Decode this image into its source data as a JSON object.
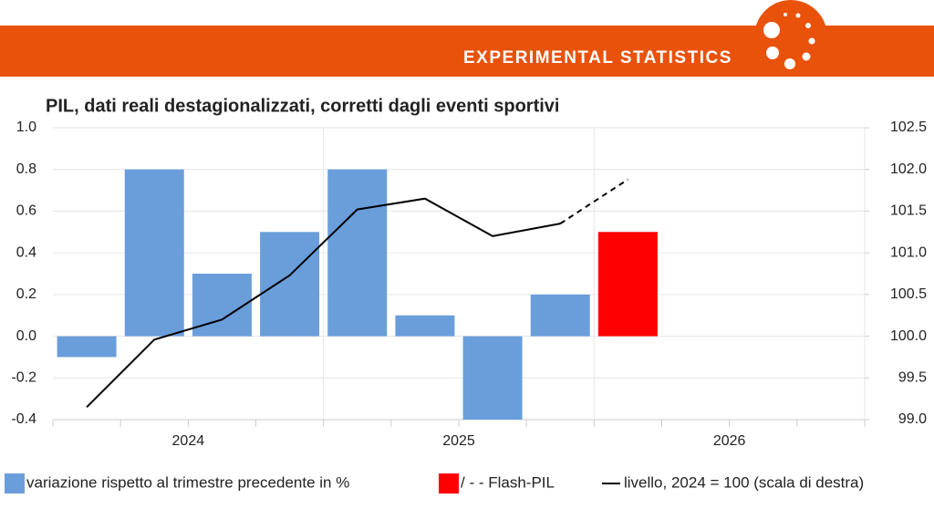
{
  "header": {
    "banner": "EXPERIMENTAL STATISTICS"
  },
  "chart_data": {
    "type": "bar",
    "title": "PIL, dati reali destagionalizzati, corretti dagli eventi sportivi",
    "categories": [
      null,
      null,
      null,
      null,
      null,
      null,
      null,
      null,
      null,
      null,
      null,
      null
    ],
    "year_labels": [
      "2024",
      "2025",
      "2026"
    ],
    "series": [
      {
        "name": "variazione rispetto al trimestre precedente in %",
        "color": "#6a9edb",
        "values": [
          -0.1,
          0.8,
          0.3,
          0.5,
          0.8,
          0.1,
          -0.4,
          0.2,
          null,
          null,
          null,
          null
        ]
      },
      {
        "name": "/ - - Flash-PIL",
        "color": "#ff0000",
        "values": [
          null,
          null,
          null,
          null,
          null,
          null,
          null,
          null,
          0.5,
          null,
          null,
          null
        ]
      },
      {
        "name": "livello, 2024 = 100 (scala di destra)",
        "type": "line",
        "axis": "y2",
        "color": "#000000",
        "dash_from": 8,
        "values": [
          99.15,
          99.96,
          100.2,
          100.73,
          101.52,
          101.65,
          101.2,
          101.35,
          101.88,
          null,
          null,
          null
        ]
      }
    ],
    "ylim": [
      -0.4,
      1.0
    ],
    "yticks": [
      -0.4,
      -0.2,
      {
        "value": 0,
        "label": "0.0"
      },
      0.2,
      0.4,
      0.6,
      0.8,
      {
        "value": 1,
        "label": "1.0"
      }
    ],
    "y2lim": [
      99,
      102.5
    ],
    "y2ticks": [
      {
        "value": 99,
        "label": "99.0"
      },
      99.5,
      {
        "value": 100,
        "label": "100.0"
      },
      100.5,
      {
        "value": 101,
        "label": "101.0"
      },
      101.5,
      {
        "value": 102,
        "label": "102.0"
      },
      102.5
    ],
    "grid": true
  }
}
